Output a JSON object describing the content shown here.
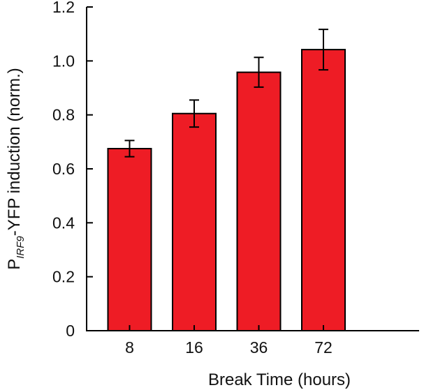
{
  "chart_data": {
    "type": "bar",
    "title": "",
    "categories": [
      "8",
      "16",
      "36",
      "72"
    ],
    "values": [
      0.675,
      0.805,
      0.958,
      1.042
    ],
    "error": [
      0.03,
      0.05,
      0.055,
      0.075
    ],
    "xlabel": "Break Time (hours)",
    "ylabel": {
      "prefix": "P",
      "subscript": "IRF9",
      "suffix": "-YFP induction (norm.)"
    },
    "ylim": [
      0,
      1.2
    ],
    "yticks": [
      "0",
      "0.2",
      "0.4",
      "0.6",
      "0.8",
      "1.0",
      "1.2"
    ],
    "ytick_values": [
      0,
      0.2,
      0.4,
      0.6,
      0.8,
      1.0,
      1.2
    ],
    "bar_color": "#ee1c25",
    "grid": false,
    "legend": "none"
  }
}
